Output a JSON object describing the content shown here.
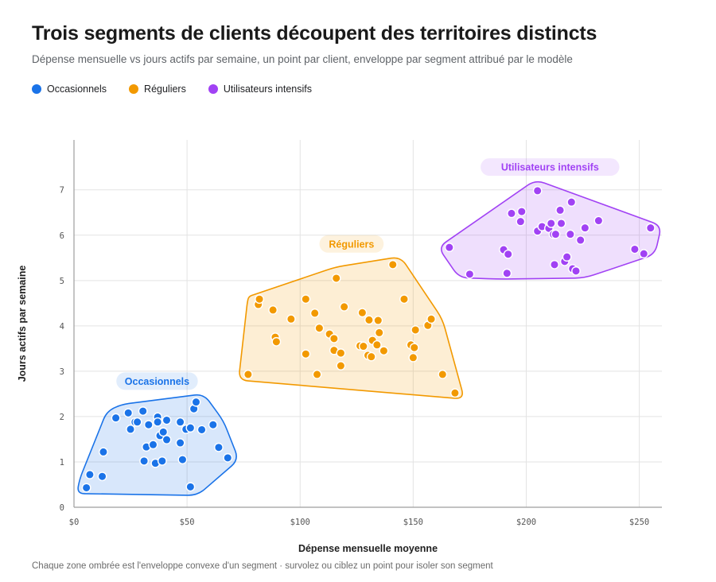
{
  "title": "Trois segments de clients découpent des territoires distincts",
  "subtitle": "Dépense mensuelle vs jours actifs par semaine, un point par client, enveloppe par segment attribué par le modèle",
  "footnote": "Chaque zone ombrée est l'enveloppe convexe d'un segment · survolez ou ciblez un point pour isoler son segment",
  "legend": [
    {
      "label": "Occasionnels",
      "color": "#1a73e8"
    },
    {
      "label": "Réguliers",
      "color": "#f29900"
    },
    {
      "label": "Utilisateurs intensifs",
      "color": "#a142f4"
    }
  ],
  "chart_data": {
    "type": "scatter",
    "xlabel": "Dépense mensuelle moyenne",
    "ylabel": "Jours actifs par semaine",
    "xlim": [
      0,
      260
    ],
    "ylim": [
      0,
      8.1
    ],
    "xticks": [
      0,
      50,
      100,
      150,
      200,
      250
    ],
    "xtick_labels": [
      "$0",
      "$50",
      "$100",
      "$150",
      "$200",
      "$250"
    ],
    "yticks": [
      0,
      1,
      2,
      3,
      4,
      5,
      6,
      7
    ],
    "ytick_labels": [
      "0",
      "1",
      "2",
      "3",
      "4",
      "5",
      "6",
      "7"
    ],
    "grid": true,
    "legend_position": "top-left",
    "series": [
      {
        "name": "Occasionnels",
        "color": "#1a73e8",
        "cluster_label": "Occasionnels",
        "points": [
          [
            5.5,
            0.43
          ],
          [
            7,
            0.72
          ],
          [
            12.5,
            0.68
          ],
          [
            13,
            1.22
          ],
          [
            18.5,
            1.97
          ],
          [
            24,
            2.08
          ],
          [
            25,
            1.72
          ],
          [
            27,
            1.88
          ],
          [
            28,
            1.88
          ],
          [
            30.5,
            2.12
          ],
          [
            31,
            1.02
          ],
          [
            32,
            1.33
          ],
          [
            33,
            1.82
          ],
          [
            35,
            1.38
          ],
          [
            36,
            0.97
          ],
          [
            37,
            1.99
          ],
          [
            37,
            1.88
          ],
          [
            38,
            1.58
          ],
          [
            39,
            1.02
          ],
          [
            39.5,
            1.66
          ],
          [
            41,
            1.92
          ],
          [
            41,
            1.49
          ],
          [
            47,
            1.88
          ],
          [
            47,
            1.42
          ],
          [
            48,
            1.05
          ],
          [
            49.5,
            1.72
          ],
          [
            51.5,
            1.75
          ],
          [
            51.5,
            0.45
          ],
          [
            53,
            2.17
          ],
          [
            54,
            2.32
          ],
          [
            56.5,
            1.71
          ],
          [
            61.5,
            1.82
          ],
          [
            64,
            1.32
          ],
          [
            68,
            1.09
          ]
        ]
      },
      {
        "name": "Réguliers",
        "color": "#f29900",
        "cluster_label": "Réguliers",
        "points": [
          [
            77,
            2.93
          ],
          [
            81.5,
            4.47
          ],
          [
            82,
            4.59
          ],
          [
            88,
            4.35
          ],
          [
            89,
            3.75
          ],
          [
            89.5,
            3.65
          ],
          [
            96,
            4.15
          ],
          [
            102.5,
            3.38
          ],
          [
            102.5,
            4.59
          ],
          [
            106.5,
            4.28
          ],
          [
            107.5,
            2.93
          ],
          [
            108.5,
            3.95
          ],
          [
            113,
            3.82
          ],
          [
            115,
            3.72
          ],
          [
            115,
            3.46
          ],
          [
            116,
            5.05
          ],
          [
            118,
            3.12
          ],
          [
            118,
            3.4
          ],
          [
            119.5,
            4.42
          ],
          [
            126.5,
            3.56
          ],
          [
            127.5,
            4.29
          ],
          [
            128,
            3.55
          ],
          [
            130,
            3.35
          ],
          [
            130.5,
            4.13
          ],
          [
            131.5,
            3.32
          ],
          [
            132,
            3.68
          ],
          [
            134,
            3.58
          ],
          [
            134.5,
            4.12
          ],
          [
            135,
            3.85
          ],
          [
            137,
            3.45
          ],
          [
            141,
            5.35
          ],
          [
            146,
            4.59
          ],
          [
            149,
            3.58
          ],
          [
            150,
            3.3
          ],
          [
            150.5,
            3.52
          ],
          [
            151,
            3.91
          ],
          [
            156.5,
            4.01
          ],
          [
            158,
            4.15
          ],
          [
            163,
            2.93
          ],
          [
            168.5,
            2.52
          ]
        ]
      },
      {
        "name": "Utilisateurs intensifs",
        "color": "#a142f4",
        "cluster_label": "Utilisateurs intensifs",
        "points": [
          [
            166,
            5.73
          ],
          [
            175,
            5.14
          ],
          [
            190,
            5.68
          ],
          [
            191.5,
            5.16
          ],
          [
            192,
            5.58
          ],
          [
            193.5,
            6.48
          ],
          [
            197.5,
            6.3
          ],
          [
            198,
            6.52
          ],
          [
            205,
            6.98
          ],
          [
            205,
            6.09
          ],
          [
            207,
            6.19
          ],
          [
            210,
            6.15
          ],
          [
            211,
            6.26
          ],
          [
            212,
            6.02
          ],
          [
            212.5,
            5.35
          ],
          [
            213,
            6.02
          ],
          [
            215,
            6.55
          ],
          [
            215.5,
            6.26
          ],
          [
            217,
            5.42
          ],
          [
            218,
            5.52
          ],
          [
            219.5,
            6.02
          ],
          [
            220,
            6.73
          ],
          [
            220.5,
            5.26
          ],
          [
            222,
            5.21
          ],
          [
            224,
            5.89
          ],
          [
            226,
            6.16
          ],
          [
            232,
            6.32
          ],
          [
            248,
            5.69
          ],
          [
            252,
            5.59
          ],
          [
            255,
            6.16
          ]
        ]
      }
    ]
  }
}
